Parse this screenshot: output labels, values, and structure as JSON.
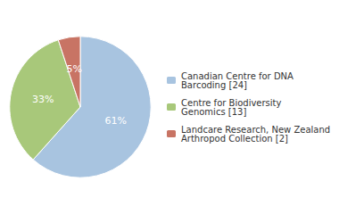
{
  "chart_data": {
    "type": "pie",
    "categories": [
      "Canadian Centre for DNA\nBarcoding [24]",
      "Centre for Biodiversity\nGenomics [13]",
      "Landcare Research, New Zealand\nArthropod Collection [2]"
    ],
    "values": [
      61,
      33,
      5
    ],
    "value_labels": [
      "61%",
      "33%",
      "5%"
    ],
    "colors": [
      "#a8c4e0",
      "#a8c87a",
      "#c87464"
    ],
    "data_labels": true,
    "legend": "right"
  }
}
